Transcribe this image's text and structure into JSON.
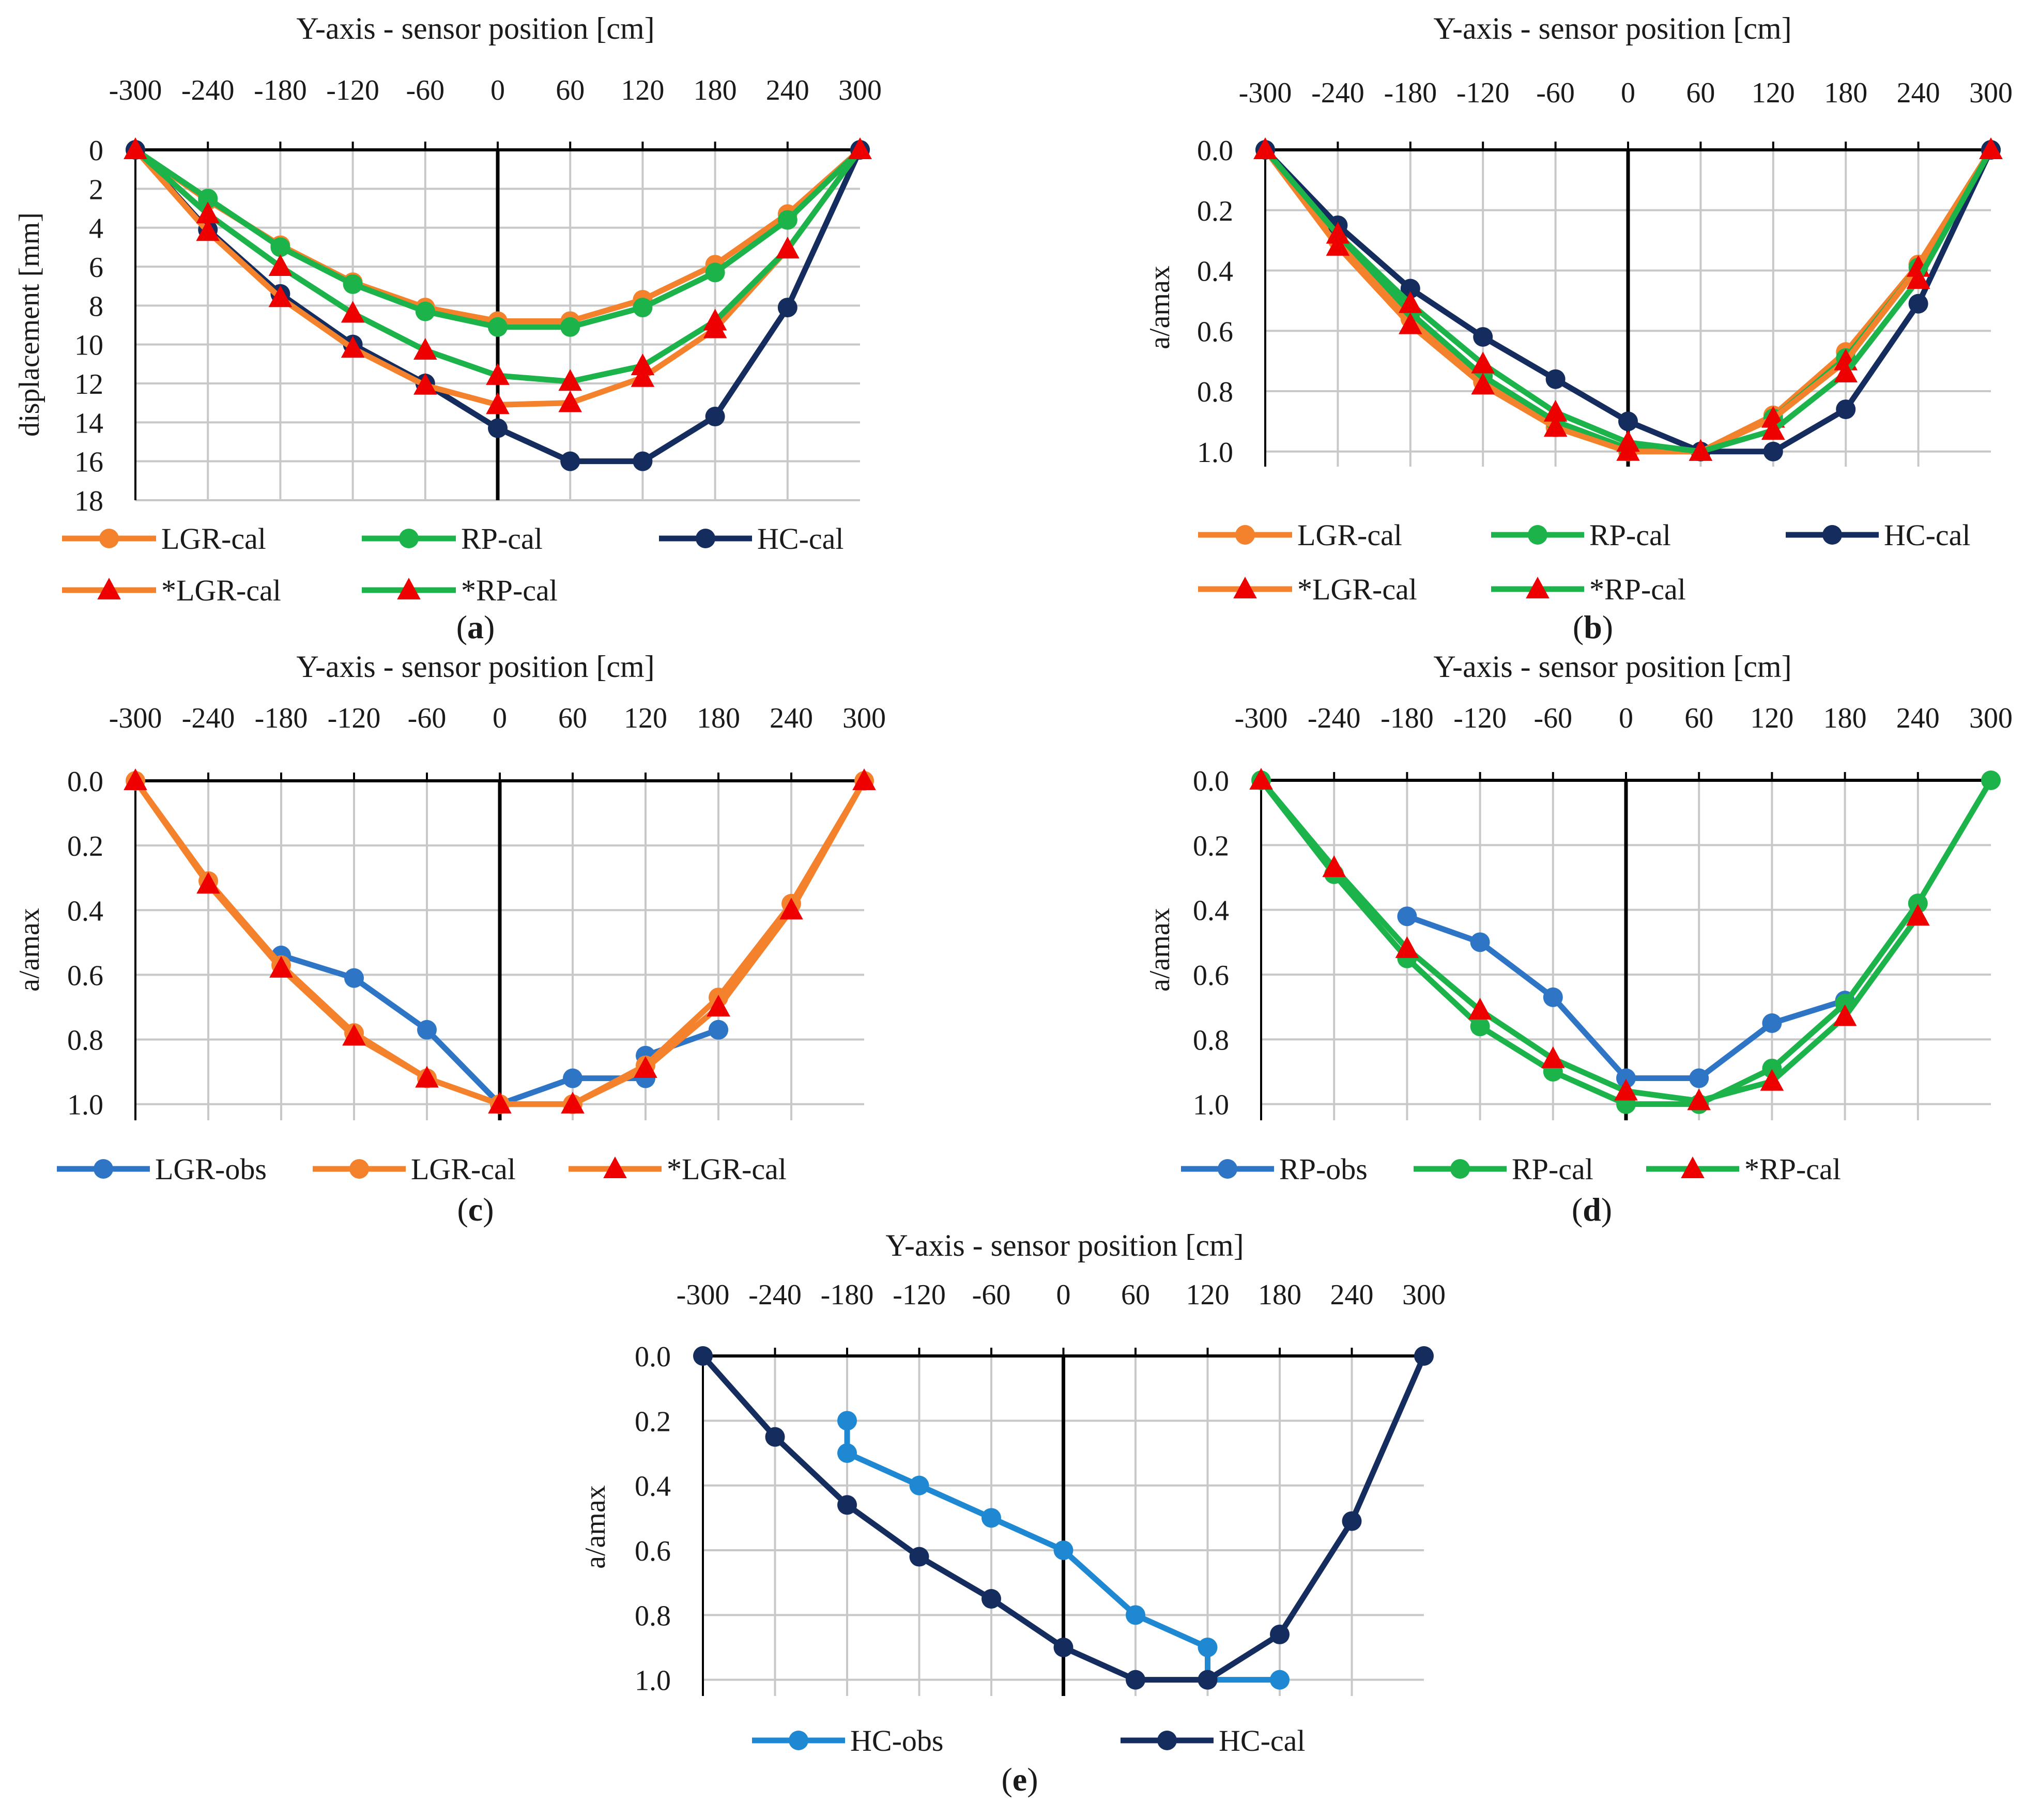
{
  "colors": {
    "LGR-cal": "#f4812c",
    "RP-cal": "#1db34b",
    "HC-cal": "#142d5e",
    "LGR-obs": "#2e75c6",
    "RP-obs": "#2e75c6",
    "HC-obs": "#1e88d2",
    "triangle": "#ee0000",
    "grid": "#c8c8c8",
    "axis": "#000000"
  },
  "chart_data": [
    {
      "id": "a",
      "panel_label": "a",
      "type": "line",
      "title": "",
      "xlabel": "Y-axis - sensor position [cm]",
      "ylabel": "displacement [mm]",
      "x_ticks": [
        "-300",
        "-240",
        "-180",
        "-120",
        "-60",
        "0",
        "60",
        "120",
        "180",
        "240",
        "300"
      ],
      "y_ticks": [
        "0",
        "2",
        "4",
        "6",
        "8",
        "10",
        "12",
        "14",
        "16",
        "18"
      ],
      "xlim": [
        -300,
        300
      ],
      "ylim": [
        0,
        18
      ],
      "y_inverted": true,
      "grid": true,
      "legend_rows": [
        [
          "LGR-cal",
          "RP-cal",
          "HC-cal"
        ],
        [
          "*LGR-cal",
          "*RP-cal"
        ]
      ],
      "series": [
        {
          "name": "LGR-cal",
          "line": "LGR-cal",
          "marker": "circle",
          "marker_color": "LGR-cal",
          "x": [
            -300,
            -240,
            -180,
            -120,
            -60,
            0,
            60,
            120,
            180,
            240,
            300
          ],
          "y": [
            0,
            2.6,
            4.9,
            6.8,
            8.1,
            8.8,
            8.8,
            7.7,
            5.9,
            3.3,
            0
          ]
        },
        {
          "name": "RP-cal",
          "line": "RP-cal",
          "marker": "circle",
          "marker_color": "RP-cal",
          "x": [
            -300,
            -240,
            -180,
            -120,
            -60,
            0,
            60,
            120,
            180,
            240,
            300
          ],
          "y": [
            0,
            2.5,
            5.0,
            6.9,
            8.3,
            9.1,
            9.1,
            8.1,
            6.3,
            3.6,
            0
          ]
        },
        {
          "name": "HC-cal",
          "line": "HC-cal",
          "marker": "circle",
          "marker_color": "HC-cal",
          "x": [
            -300,
            -240,
            -180,
            -120,
            -60,
            0,
            60,
            120,
            180,
            240,
            300
          ],
          "y": [
            0,
            4.1,
            7.4,
            10.0,
            12.0,
            14.3,
            16.0,
            16.0,
            13.7,
            8.1,
            0
          ]
        },
        {
          "name": "*LGR-cal",
          "line": "LGR-cal",
          "marker": "triangle",
          "marker_color": "triangle",
          "x": [
            -300,
            -240,
            -180,
            -120,
            -60,
            0,
            60,
            120,
            180,
            240,
            300
          ],
          "y": [
            0,
            4.2,
            7.6,
            10.2,
            12.1,
            13.1,
            13.0,
            11.7,
            9.2,
            5.1,
            0
          ]
        },
        {
          "name": "*RP-cal",
          "line": "RP-cal",
          "marker": "triangle",
          "marker_color": "triangle",
          "x": [
            -300,
            -240,
            -180,
            -120,
            -60,
            0,
            60,
            120,
            180,
            240,
            300
          ],
          "y": [
            0,
            3.3,
            6.0,
            8.4,
            10.3,
            11.6,
            11.9,
            11.1,
            8.8,
            5.1,
            0
          ]
        }
      ]
    },
    {
      "id": "b",
      "panel_label": "b",
      "type": "line",
      "title": "",
      "xlabel": "Y-axis - sensor position [cm]",
      "ylabel": "a/amax",
      "x_ticks": [
        "-300",
        "-240",
        "-180",
        "-120",
        "-60",
        "0",
        "60",
        "120",
        "180",
        "240",
        "300"
      ],
      "y_ticks": [
        "0.0",
        "0.2",
        "0.4",
        "0.6",
        "0.8",
        "1.0"
      ],
      "xlim": [
        -300,
        300
      ],
      "ylim": [
        0,
        1.05
      ],
      "y_inverted": true,
      "grid": true,
      "legend_rows": [
        [
          "LGR-cal",
          "RP-cal",
          "HC-cal"
        ],
        [
          "*LGR-cal",
          "*RP-cal"
        ]
      ],
      "series": [
        {
          "name": "LGR-cal",
          "line": "LGR-cal",
          "marker": "circle",
          "marker_color": "LGR-cal",
          "x": [
            -300,
            -240,
            -180,
            -120,
            -60,
            0,
            60,
            120,
            180,
            240,
            300
          ],
          "y": [
            0,
            0.3,
            0.56,
            0.77,
            0.92,
            1.0,
            1.0,
            0.88,
            0.67,
            0.38,
            0
          ]
        },
        {
          "name": "RP-cal",
          "line": "RP-cal",
          "marker": "circle",
          "marker_color": "RP-cal",
          "x": [
            -300,
            -240,
            -180,
            -120,
            -60,
            0,
            60,
            120,
            180,
            240,
            300
          ],
          "y": [
            0,
            0.28,
            0.54,
            0.75,
            0.9,
            0.99,
            1.0,
            0.89,
            0.69,
            0.39,
            0
          ]
        },
        {
          "name": "HC-cal",
          "line": "HC-cal",
          "marker": "circle",
          "marker_color": "HC-cal",
          "x": [
            -300,
            -240,
            -180,
            -120,
            -60,
            0,
            60,
            120,
            180,
            240,
            300
          ],
          "y": [
            0,
            0.25,
            0.46,
            0.62,
            0.76,
            0.9,
            1.0,
            1.0,
            0.86,
            0.51,
            0
          ]
        },
        {
          "name": "*LGR-cal",
          "line": "LGR-cal",
          "marker": "triangle",
          "marker_color": "triangle",
          "x": [
            -300,
            -240,
            -180,
            -120,
            -60,
            0,
            60,
            120,
            180,
            240,
            300
          ],
          "y": [
            0,
            0.32,
            0.58,
            0.78,
            0.92,
            1.0,
            1.0,
            0.89,
            0.7,
            0.39,
            0
          ]
        },
        {
          "name": "*RP-cal",
          "line": "RP-cal",
          "marker": "triangle",
          "marker_color": "triangle",
          "x": [
            -300,
            -240,
            -180,
            -120,
            -60,
            0,
            60,
            120,
            180,
            240,
            300
          ],
          "y": [
            0,
            0.28,
            0.51,
            0.71,
            0.87,
            0.97,
            1.0,
            0.93,
            0.74,
            0.43,
            0
          ]
        }
      ]
    },
    {
      "id": "c",
      "panel_label": "c",
      "type": "line",
      "title": "",
      "xlabel": "Y-axis - sensor position [cm]",
      "ylabel": "a/amax",
      "x_ticks": [
        "-300",
        "-240",
        "-180",
        "-120",
        "-60",
        "0",
        "60",
        "120",
        "180",
        "240",
        "300"
      ],
      "y_ticks": [
        "0.0",
        "0.2",
        "0.4",
        "0.6",
        "0.8",
        "1.0"
      ],
      "xlim": [
        -300,
        300
      ],
      "ylim": [
        0,
        1.05
      ],
      "y_inverted": true,
      "grid": true,
      "legend_rows": [
        [
          "LGR-obs",
          "LGR-cal",
          "*LGR-cal"
        ]
      ],
      "series": [
        {
          "name": "LGR-obs",
          "line": "LGR-obs",
          "marker": "circle",
          "marker_color": "LGR-obs",
          "x": [
            -180,
            -120,
            -60,
            0,
            60,
            120,
            120,
            180,
            180
          ],
          "y": [
            0.54,
            0.61,
            0.77,
            1.0,
            0.92,
            0.92,
            0.85,
            0.77,
            0.77
          ]
        },
        {
          "name": "LGR-cal",
          "line": "LGR-cal",
          "marker": "circle",
          "marker_color": "LGR-cal",
          "x": [
            -300,
            -240,
            -180,
            -120,
            -60,
            0,
            60,
            120,
            180,
            240,
            300
          ],
          "y": [
            0,
            0.31,
            0.57,
            0.78,
            0.92,
            1.0,
            1.0,
            0.88,
            0.67,
            0.38,
            0
          ]
        },
        {
          "name": "*LGR-cal",
          "line": "LGR-cal",
          "marker": "triangle",
          "marker_color": "triangle",
          "x": [
            -300,
            -240,
            -180,
            -120,
            -60,
            0,
            60,
            120,
            180,
            240,
            300
          ],
          "y": [
            0,
            0.32,
            0.58,
            0.79,
            0.92,
            1.0,
            1.0,
            0.89,
            0.7,
            0.4,
            0
          ]
        }
      ]
    },
    {
      "id": "d",
      "panel_label": "d",
      "type": "line",
      "title": "",
      "xlabel": "Y-axis - sensor position [cm]",
      "ylabel": "a/amax",
      "x_ticks": [
        "-300",
        "-240",
        "-180",
        "-120",
        "-60",
        "0",
        "60",
        "120",
        "180",
        "240",
        "300"
      ],
      "y_ticks": [
        "0.0",
        "0.2",
        "0.4",
        "0.6",
        "0.8",
        "1.0"
      ],
      "xlim": [
        -300,
        300
      ],
      "ylim": [
        0,
        1.05
      ],
      "y_inverted": true,
      "grid": true,
      "legend_rows": [
        [
          "RP-obs",
          "RP-cal",
          "*RP-cal"
        ]
      ],
      "series": [
        {
          "name": "RP-obs",
          "line": "RP-obs",
          "marker": "circle",
          "marker_color": "RP-obs",
          "x": [
            -180,
            -120,
            -60,
            0,
            60,
            120,
            180
          ],
          "y": [
            0.42,
            0.5,
            0.67,
            0.92,
            0.92,
            0.75,
            0.68
          ]
        },
        {
          "name": "RP-cal",
          "line": "RP-cal",
          "marker": "circle",
          "marker_color": "RP-cal",
          "x": [
            -300,
            -240,
            -180,
            -120,
            -60,
            0,
            60,
            120,
            180,
            240,
            300
          ],
          "y": [
            0,
            0.29,
            0.55,
            0.76,
            0.9,
            1.0,
            1.0,
            0.89,
            0.69,
            0.38,
            0
          ]
        },
        {
          "name": "*RP-cal",
          "line": "RP-cal",
          "marker": "triangle",
          "marker_color": "triangle",
          "x": [
            -300,
            -240,
            -180,
            -120,
            -60,
            0,
            60,
            120,
            180,
            240
          ],
          "y": [
            0,
            0.27,
            0.52,
            0.71,
            0.86,
            0.96,
            0.99,
            0.93,
            0.73,
            0.42
          ]
        }
      ]
    },
    {
      "id": "e",
      "panel_label": "e",
      "type": "line",
      "title": "",
      "xlabel": "Y-axis - sensor position [cm]",
      "ylabel": "a/amax",
      "x_ticks": [
        "-300",
        "-240",
        "-180",
        "-120",
        "-60",
        "0",
        "60",
        "120",
        "180",
        "240",
        "300"
      ],
      "y_ticks": [
        "0.0",
        "0.2",
        "0.4",
        "0.6",
        "0.8",
        "1.0"
      ],
      "xlim": [
        -300,
        300
      ],
      "ylim": [
        0,
        1.05
      ],
      "y_inverted": true,
      "grid": true,
      "legend_rows": [
        [
          "HC-obs",
          "HC-cal"
        ]
      ],
      "series": [
        {
          "name": "HC-obs",
          "line": "HC-obs",
          "marker": "circle",
          "marker_color": "HC-obs",
          "x": [
            -180,
            -180,
            -120,
            -60,
            0,
            60,
            120,
            120,
            180
          ],
          "y": [
            0.2,
            0.3,
            0.4,
            0.5,
            0.6,
            0.8,
            0.9,
            1.0,
            1.0
          ]
        },
        {
          "name": "HC-cal",
          "line": "HC-cal",
          "marker": "circle",
          "marker_color": "HC-cal",
          "x": [
            -300,
            -240,
            -180,
            -120,
            -60,
            0,
            60,
            120,
            180,
            240,
            300
          ],
          "y": [
            0,
            0.25,
            0.46,
            0.62,
            0.75,
            0.9,
            1.0,
            1.0,
            0.86,
            0.51,
            0
          ]
        }
      ]
    }
  ]
}
